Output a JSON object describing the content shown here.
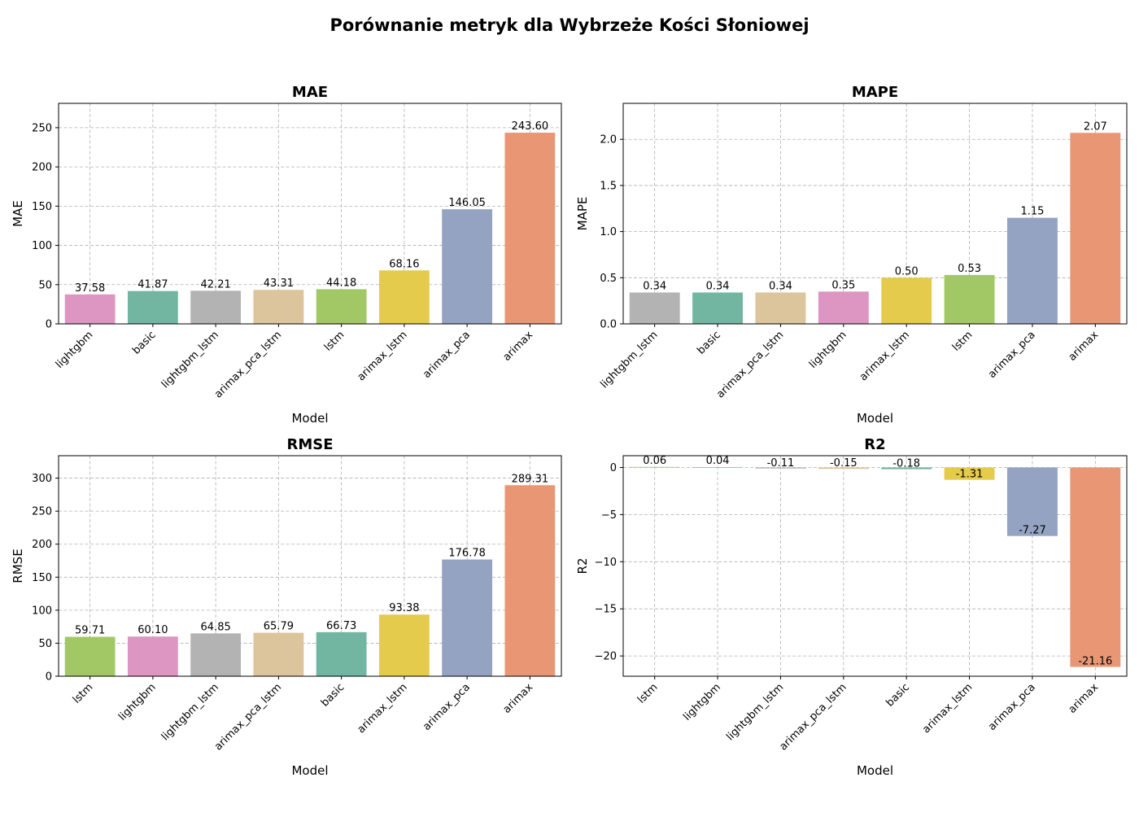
{
  "suptitle": "Porównanie metryk dla Wybrzeże Kości Słoniowej",
  "palette": {
    "arimax": "#e99675",
    "arimax_pca": "#95a3c3",
    "arimax_lstm": "#e5cb4b",
    "lstm": "#a2c865",
    "arimax_pca_lstm": "#dcc49c",
    "lightgbm_lstm": "#b3b3b3",
    "basic": "#72b6a1",
    "lightgbm": "#dc96c1"
  },
  "chart_data": [
    {
      "type": "bar",
      "title": "MAE",
      "xlabel": "Model",
      "ylabel": "MAE",
      "categories": [
        "lightgbm",
        "basic",
        "lightgbm_lstm",
        "arimax_pca_lstm",
        "lstm",
        "arimax_lstm",
        "arimax_pca",
        "arimax"
      ],
      "values": [
        37.58,
        41.87,
        42.21,
        43.31,
        44.18,
        68.16,
        146.05,
        243.6
      ],
      "value_labels": [
        "37.58",
        "41.87",
        "42.21",
        "43.31",
        "44.18",
        "68.16",
        "146.05",
        "243.60"
      ],
      "ylim": [
        0,
        281
      ],
      "yticks": [
        0,
        50,
        100,
        150,
        200,
        250
      ],
      "ytick_labels": [
        "0",
        "50",
        "100",
        "150",
        "200",
        "250"
      ],
      "grid": true
    },
    {
      "type": "bar",
      "title": "MAPE",
      "xlabel": "Model",
      "ylabel": "MAPE",
      "categories": [
        "lightgbm_lstm",
        "basic",
        "arimax_pca_lstm",
        "lightgbm",
        "arimax_lstm",
        "lstm",
        "arimax_pca",
        "arimax"
      ],
      "values": [
        0.34,
        0.34,
        0.34,
        0.35,
        0.5,
        0.53,
        1.15,
        2.07
      ],
      "value_labels": [
        "0.34",
        "0.34",
        "0.34",
        "0.35",
        "0.50",
        "0.53",
        "1.15",
        "2.07"
      ],
      "ylim": [
        0,
        2.39
      ],
      "yticks": [
        0,
        0.5,
        1.0,
        1.5,
        2.0
      ],
      "ytick_labels": [
        "0.0",
        "0.5",
        "1.0",
        "1.5",
        "2.0"
      ],
      "grid": true
    },
    {
      "type": "bar",
      "title": "RMSE",
      "xlabel": "Model",
      "ylabel": "RMSE",
      "categories": [
        "lstm",
        "lightgbm",
        "lightgbm_lstm",
        "arimax_pca_lstm",
        "basic",
        "arimax_lstm",
        "arimax_pca",
        "arimax"
      ],
      "values": [
        59.71,
        60.1,
        64.85,
        65.79,
        66.73,
        93.38,
        176.78,
        289.31
      ],
      "value_labels": [
        "59.71",
        "60.10",
        "64.85",
        "65.79",
        "66.73",
        "93.38",
        "176.78",
        "289.31"
      ],
      "ylim": [
        0,
        334
      ],
      "yticks": [
        0,
        50,
        100,
        150,
        200,
        250,
        300
      ],
      "ytick_labels": [
        "0",
        "50",
        "100",
        "150",
        "200",
        "250",
        "300"
      ],
      "grid": true
    },
    {
      "type": "bar",
      "title": "R2",
      "xlabel": "Model",
      "ylabel": "R2",
      "categories": [
        "lstm",
        "lightgbm",
        "lightgbm_lstm",
        "arimax_pca_lstm",
        "basic",
        "arimax_lstm",
        "arimax_pca",
        "arimax"
      ],
      "values": [
        0.06,
        0.04,
        -0.11,
        -0.15,
        -0.18,
        -1.31,
        -7.27,
        -21.16
      ],
      "value_labels": [
        "0.06",
        "0.04",
        "-0.11",
        "-0.15",
        "-0.18",
        "-1.31",
        "-7.27",
        "-21.16"
      ],
      "ylim": [
        -22.15,
        1.25
      ],
      "yticks": [
        0,
        -5,
        -10,
        -15,
        -20
      ],
      "ytick_labels": [
        "0",
        "−5",
        "−10",
        "−15",
        "−20"
      ],
      "grid": true
    }
  ]
}
